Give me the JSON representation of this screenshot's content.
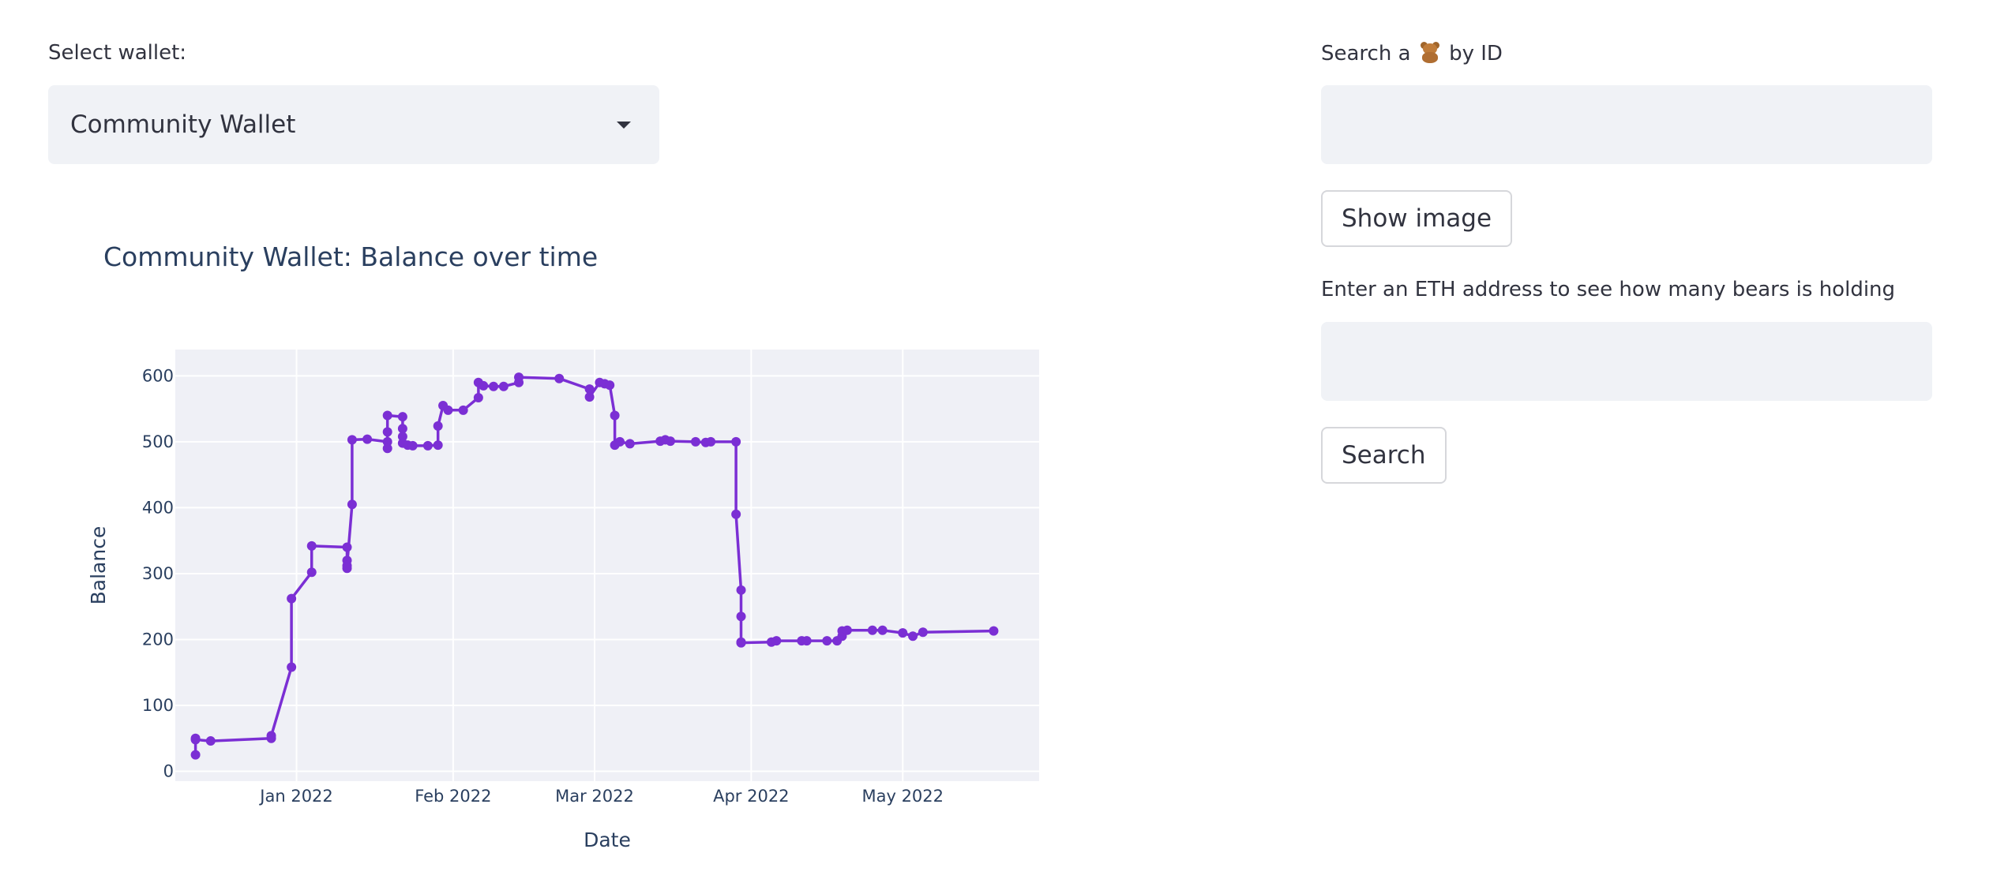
{
  "wallet_select": {
    "label": "Select wallet:",
    "selected": "Community Wallet"
  },
  "chart_title": "Community Wallet: Balance over time",
  "search_id": {
    "label_prefix": "Search a",
    "label_icon": "teddy-bear-icon",
    "label_suffix": "by ID",
    "value": "",
    "button_label": "Show image"
  },
  "eth_search": {
    "label": "Enter an ETH address to see how many bears is holding",
    "value": "",
    "button_label": "Search"
  },
  "colors": {
    "line": "#7b2fd4",
    "plot_bg": "#eff0f6",
    "input_bg": "#f0f2f6",
    "text": "#31333f"
  },
  "chart_data": {
    "type": "line",
    "title": "Community Wallet: Balance over time",
    "xlabel": "Date",
    "ylabel": "Balance",
    "x_ticks": [
      "Jan 2022",
      "Feb 2022",
      "Mar 2022",
      "Apr 2022",
      "May 2022"
    ],
    "y_ticks": [
      0,
      100,
      200,
      300,
      400,
      500,
      600
    ],
    "xlim": [
      "2021-12-08",
      "2022-05-28"
    ],
    "ylim": [
      -15,
      640
    ],
    "grid": true,
    "markers": true,
    "series": [
      {
        "x": [
          "2021-12-12",
          "2021-12-12",
          "2021-12-12",
          "2021-12-15",
          "2021-12-27",
          "2021-12-27",
          "2021-12-31",
          "2021-12-31",
          "2022-01-04",
          "2022-01-04",
          "2022-01-11",
          "2022-01-11",
          "2022-01-11",
          "2022-01-11",
          "2022-01-12",
          "2022-01-12",
          "2022-01-15",
          "2022-01-19",
          "2022-01-19",
          "2022-01-19",
          "2022-01-19",
          "2022-01-22",
          "2022-01-22",
          "2022-01-22",
          "2022-01-22",
          "2022-01-23",
          "2022-01-24",
          "2022-01-27",
          "2022-01-29",
          "2022-01-29",
          "2022-01-30",
          "2022-01-31",
          "2022-02-03",
          "2022-02-06",
          "2022-02-06",
          "2022-02-07",
          "2022-02-09",
          "2022-02-11",
          "2022-02-14",
          "2022-02-14",
          "2022-02-22",
          "2022-02-28",
          "2022-02-28",
          "2022-03-02",
          "2022-03-03",
          "2022-03-04",
          "2022-03-05",
          "2022-03-05",
          "2022-03-06",
          "2022-03-08",
          "2022-03-14",
          "2022-03-15",
          "2022-03-16",
          "2022-03-21",
          "2022-03-23",
          "2022-03-24",
          "2022-03-29",
          "2022-03-29",
          "2022-03-30",
          "2022-03-30",
          "2022-03-30",
          "2022-03-30",
          "2022-03-30",
          "2022-04-05",
          "2022-04-06",
          "2022-04-11",
          "2022-04-12",
          "2022-04-16",
          "2022-04-18",
          "2022-04-19",
          "2022-04-19",
          "2022-04-20",
          "2022-04-25",
          "2022-04-27",
          "2022-05-01",
          "2022-05-03",
          "2022-05-05",
          "2022-05-19"
        ],
        "y": [
          50,
          25,
          48,
          46,
          50,
          54,
          158,
          262,
          302,
          342,
          340,
          320,
          308,
          312,
          405,
          503,
          504,
          500,
          490,
          515,
          540,
          538,
          520,
          508,
          498,
          495,
          494,
          494,
          495,
          524,
          555,
          548,
          548,
          567,
          590,
          585,
          584,
          584,
          590,
          598,
          596,
          580,
          568,
          590,
          588,
          586,
          540,
          495,
          500,
          497,
          501,
          503,
          501,
          500,
          499,
          500,
          500,
          390,
          275,
          235,
          196,
          195,
          195,
          196,
          198,
          198,
          198,
          198,
          198,
          205,
          213,
          214,
          214,
          214,
          210,
          205,
          211,
          213
        ]
      }
    ]
  }
}
